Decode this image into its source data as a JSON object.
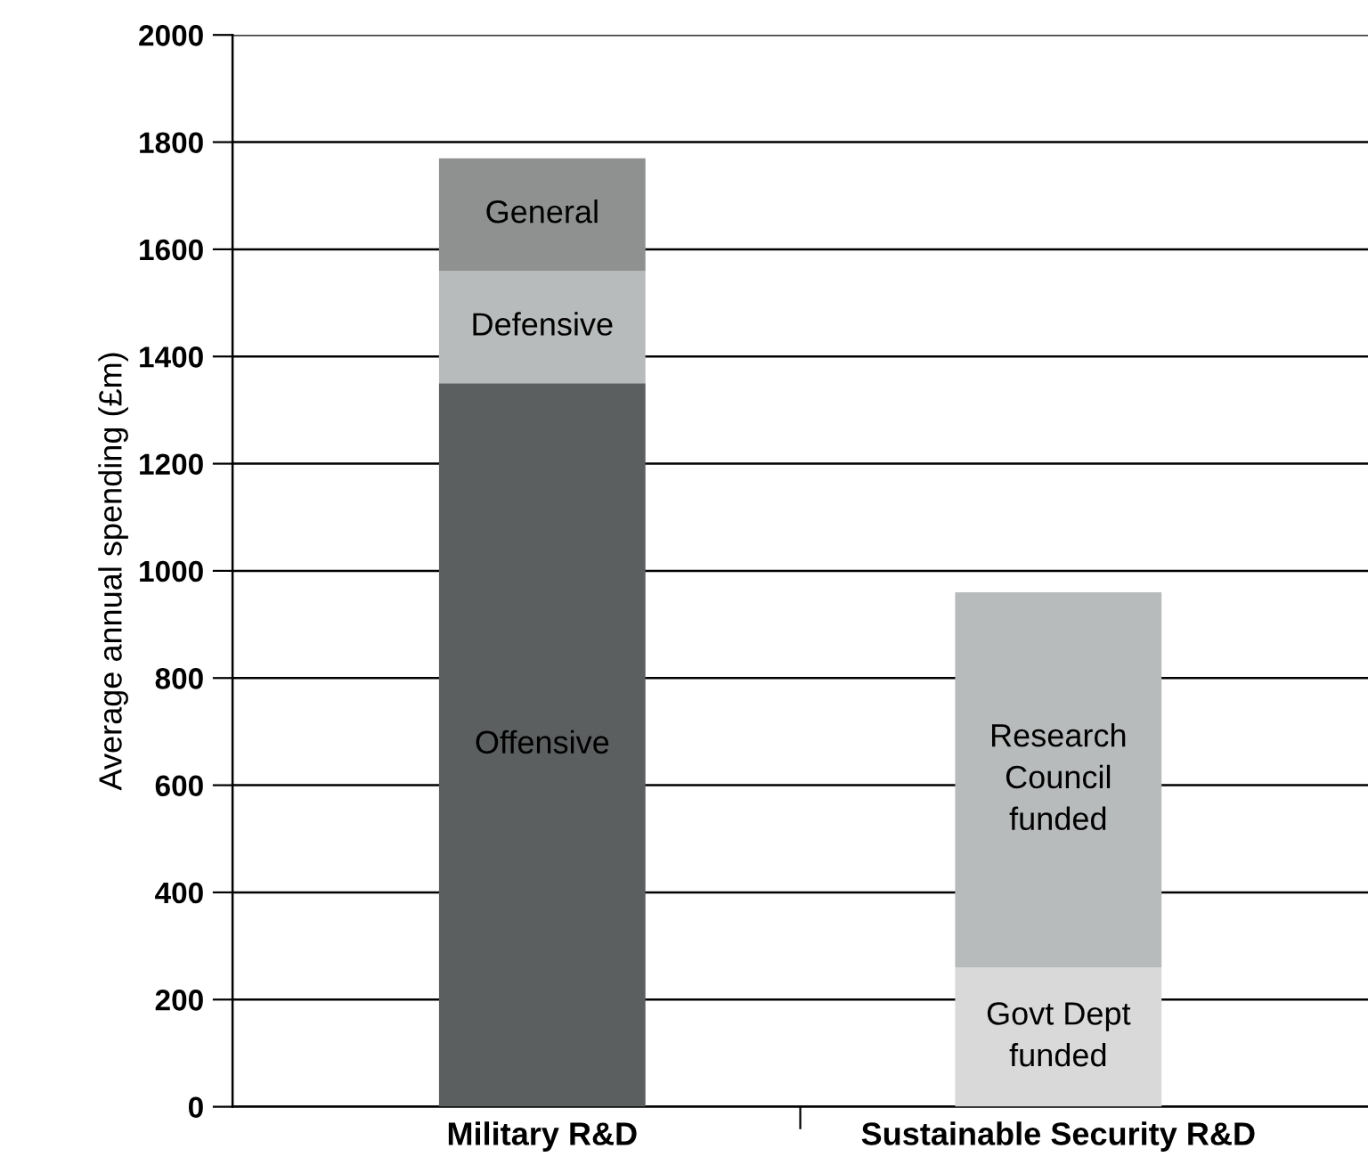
{
  "chart_data": {
    "type": "bar",
    "stacked": true,
    "ylabel": "Average annual spending (£m)",
    "categories": [
      "Military R&D",
      "Sustainable Security R&D"
    ],
    "series": [
      {
        "colors": [
          "#5b5f5f",
          "#d9d9d9"
        ],
        "values": [
          1350,
          260
        ],
        "value_labels": [
          "Offensive",
          "Govt Dept\nfunded"
        ]
      },
      {
        "colors": [
          "#b8bbbb",
          "#b8bbbb"
        ],
        "values": [
          210,
          700
        ],
        "value_labels": [
          "Defensive",
          "Research\nCouncil\nfunded"
        ]
      },
      {
        "colors": [
          "#8f9191",
          "#8f9191"
        ],
        "values": [
          210,
          null
        ],
        "value_labels": [
          "General",
          null
        ]
      }
    ],
    "ylim": [
      0,
      2000
    ],
    "yticks": [
      0,
      200,
      400,
      600,
      800,
      1000,
      1200,
      1400,
      1600,
      1800,
      2000
    ],
    "grid": "y"
  }
}
